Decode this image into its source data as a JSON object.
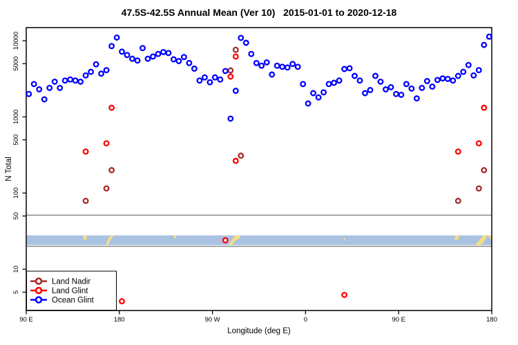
{
  "title": "47.5S-42.5S Annual Mean (Ver 10)   2015-01-01 to 2020-12-18",
  "chart_data": {
    "type": "scatter",
    "xlabel": "Longitude (deg E)",
    "ylabel": "N Total",
    "x_axis": {
      "range": [
        -270,
        180
      ],
      "ticks": [
        -270,
        -180,
        -90,
        0,
        90,
        180
      ],
      "tick_labels": [
        "90 E",
        "180",
        "90 W",
        "0",
        "90 E",
        "180"
      ]
    },
    "y_axis": {
      "scale": "log10",
      "range_approx": [
        3,
        15000
      ],
      "ticks": [
        5,
        10,
        50,
        100,
        500,
        1000,
        5000,
        10000
      ]
    },
    "grid": "off",
    "guide_lines": [
      51.3,
      20.0
    ],
    "legend_position": "bottom-left",
    "map_strip": {
      "description": "latitude-band world map inset, ocean with land patches",
      "value_band": [
        27.8,
        20.8
      ],
      "ocean_color": "#A9C2E2",
      "land_color": "#F7DD83",
      "land_patches": [
        [
          [
            -214.9,
            0
          ],
          [
            -211.6,
            0
          ],
          [
            -211.6,
            0.45
          ],
          [
            -214.9,
            0.45
          ]
        ],
        [
          [
            -193.5,
            1
          ],
          [
            -189.8,
            0.15
          ],
          [
            -187.6,
            0
          ],
          [
            -185.4,
            0
          ],
          [
            -188.8,
            0.55
          ],
          [
            -191.2,
            1
          ]
        ],
        [
          [
            -127.3,
            0
          ],
          [
            -125.2,
            0
          ],
          [
            -125.2,
            0.3
          ],
          [
            -127.3,
            0.3
          ]
        ],
        [
          [
            -74.6,
            1
          ],
          [
            -68.8,
            0.08
          ],
          [
            -66.5,
            0
          ],
          [
            -63.2,
            0
          ],
          [
            -63.2,
            0.3
          ],
          [
            -68.0,
            0.55
          ],
          [
            -71.2,
            1
          ]
        ],
        [
          [
            37.0,
            0.25
          ],
          [
            38.2,
            0.25
          ],
          [
            38.2,
            0.55
          ],
          [
            37.0,
            0.55
          ]
        ],
        [
          [
            144.3,
            0
          ],
          [
            148.0,
            0
          ],
          [
            148.0,
            0.45
          ],
          [
            144.3,
            0.45
          ]
        ],
        [
          [
            164.0,
            1
          ],
          [
            168.5,
            0.45
          ],
          [
            171.5,
            0
          ],
          [
            176.0,
            0
          ],
          [
            171.8,
            0.75
          ],
          [
            168.8,
            1
          ]
        ],
        [
          [
            176.5,
            0
          ],
          [
            180.3,
            0
          ],
          [
            180.3,
            0.5
          ],
          [
            178.0,
            0.35
          ]
        ]
      ]
    },
    "series": [
      {
        "name": "Land Nadir",
        "color": "#A52A2A",
        "points": [
          [
            -212.5,
            79
          ],
          [
            -192.5,
            115
          ],
          [
            -187.5,
            200
          ],
          [
            -72.5,
            4070
          ],
          [
            -67.5,
            7600
          ],
          [
            -62.5,
            310
          ],
          [
            147.5,
            79
          ],
          [
            167.5,
            115
          ],
          [
            172.5,
            200
          ]
        ]
      },
      {
        "name": "Land Glint",
        "color": "#FF0000",
        "points": [
          [
            -212.5,
            350
          ],
          [
            -192.5,
            450
          ],
          [
            -187.5,
            1320
          ],
          [
            -77.5,
            24
          ],
          [
            -72.5,
            3380
          ],
          [
            -67.5,
            6200
          ],
          [
            -67.5,
            265
          ],
          [
            -177.5,
            3.8
          ],
          [
            37.5,
            4.6
          ],
          [
            147.5,
            350
          ],
          [
            167.5,
            450
          ],
          [
            172.5,
            1320
          ]
        ]
      },
      {
        "name": "Ocean Glint",
        "color": "#0000FF",
        "points": [
          [
            -267.5,
            2000
          ],
          [
            -262.5,
            2700
          ],
          [
            -257.5,
            2300
          ],
          [
            -252.5,
            1700
          ],
          [
            -247.5,
            2400
          ],
          [
            -242.5,
            2900
          ],
          [
            -237.5,
            2400
          ],
          [
            -232.5,
            3000
          ],
          [
            -227.5,
            3100
          ],
          [
            -222.5,
            3000
          ],
          [
            -217.5,
            2900
          ],
          [
            -212.5,
            3500
          ],
          [
            -207.5,
            3900
          ],
          [
            -202.5,
            4900
          ],
          [
            -197.5,
            3700
          ],
          [
            -192.5,
            4100
          ],
          [
            -187.5,
            8500
          ],
          [
            -182.5,
            11000
          ],
          [
            -177.5,
            7200
          ],
          [
            -172.5,
            6500
          ],
          [
            -167.5,
            5800
          ],
          [
            -162.5,
            5500
          ],
          [
            -157.5,
            8000
          ],
          [
            -152.5,
            5800
          ],
          [
            -147.5,
            6200
          ],
          [
            -142.5,
            6700
          ],
          [
            -137.5,
            7100
          ],
          [
            -132.5,
            6900
          ],
          [
            -127.5,
            5700
          ],
          [
            -122.5,
            5400
          ],
          [
            -117.5,
            6100
          ],
          [
            -112.5,
            5100
          ],
          [
            -107.5,
            4300
          ],
          [
            -102.5,
            3000
          ],
          [
            -97.5,
            3300
          ],
          [
            -92.5,
            2850
          ],
          [
            -87.5,
            3300
          ],
          [
            -82.5,
            3100
          ],
          [
            -77.5,
            4000
          ],
          [
            -72.5,
            950
          ],
          [
            -67.5,
            2200
          ],
          [
            -62.5,
            10900
          ],
          [
            -57.5,
            9400
          ],
          [
            -52.5,
            6700
          ],
          [
            -47.5,
            5100
          ],
          [
            -42.5,
            4700
          ],
          [
            -37.5,
            5200
          ],
          [
            -32.5,
            3600
          ],
          [
            -27.5,
            4700
          ],
          [
            -22.5,
            4550
          ],
          [
            -17.5,
            4450
          ],
          [
            -12.5,
            4950
          ],
          [
            -7.5,
            4550
          ],
          [
            -2.5,
            2700
          ],
          [
            2.5,
            1500
          ],
          [
            7.5,
            2050
          ],
          [
            12.5,
            1800
          ],
          [
            17.5,
            2100
          ],
          [
            22.5,
            2700
          ],
          [
            27.5,
            2800
          ],
          [
            32.5,
            3000
          ],
          [
            37.5,
            4250
          ],
          [
            42.5,
            4350
          ],
          [
            47.5,
            3450
          ],
          [
            52.5,
            3000
          ],
          [
            57.5,
            2050
          ],
          [
            62.5,
            2250
          ],
          [
            67.5,
            3450
          ],
          [
            72.5,
            2900
          ],
          [
            77.5,
            2300
          ],
          [
            82.5,
            2450
          ],
          [
            87.5,
            2000
          ],
          [
            92.5,
            1950
          ],
          [
            97.5,
            2700
          ],
          [
            102.5,
            2350
          ],
          [
            107.5,
            1750
          ],
          [
            112.5,
            2400
          ],
          [
            117.5,
            2950
          ],
          [
            122.5,
            2500
          ],
          [
            127.5,
            3050
          ],
          [
            132.5,
            3200
          ],
          [
            137.5,
            3150
          ],
          [
            142.5,
            3000
          ],
          [
            147.5,
            3450
          ],
          [
            152.5,
            3900
          ],
          [
            157.5,
            4800
          ],
          [
            162.5,
            3500
          ],
          [
            167.5,
            4100
          ],
          [
            172.5,
            8800
          ],
          [
            177.5,
            11300
          ]
        ]
      }
    ]
  }
}
